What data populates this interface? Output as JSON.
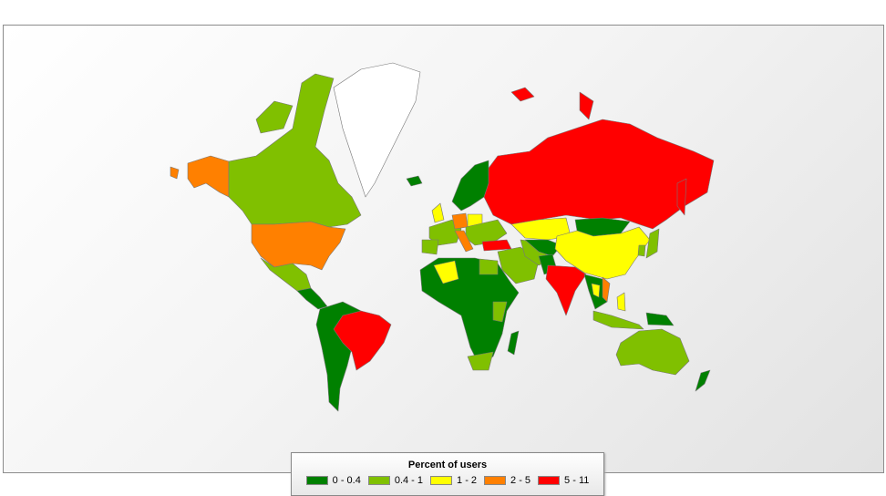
{
  "legend": {
    "title": "Percent of users",
    "items": [
      {
        "label": "0 - 0.4",
        "color": "#008000"
      },
      {
        "label": "0.4  - 1",
        "color": "#80c000"
      },
      {
        "label": "1 - 2",
        "color": "#ffff00"
      },
      {
        "label": "2 - 5",
        "color": "#ff8000"
      },
      {
        "label": "5 - 11",
        "color": "#ff0000"
      }
    ]
  },
  "no_data_color": "#ffffff",
  "regions": {
    "canada": 1,
    "alaska": 3,
    "greenland": -1,
    "usa": 3,
    "mexico": 1,
    "central-america": 0,
    "south-america": 0,
    "brazil": 4,
    "russia": 4,
    "scandinavia": 0,
    "western-europe": 1,
    "uk": 2,
    "germany": 3,
    "italy": 3,
    "eastern-europe": 1,
    "poland": 2,
    "turkey": 4,
    "africa": 0,
    "algeria": 2,
    "egypt": 1,
    "south-africa": 1,
    "east-africa": 1,
    "middle-east": 1,
    "iran": 1,
    "central-asia": 0,
    "kazakhstan": 2,
    "mongolia": 0,
    "china": 2,
    "india": 4,
    "pakistan": 0,
    "southeast-asia": 0,
    "thailand": 2,
    "vietnam": 3,
    "philippines": 2,
    "indonesia": 1,
    "japan": 1,
    "korea": 1,
    "australia": 1,
    "new-zealand": 0,
    "iceland": 0,
    "madagascar": 0,
    "papua": 0
  }
}
